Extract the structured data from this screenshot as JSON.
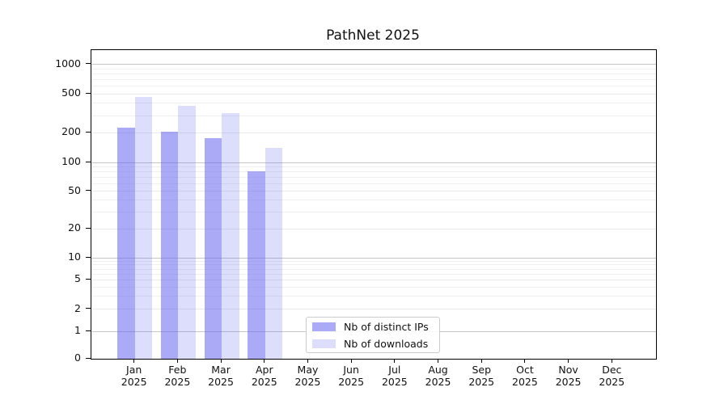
{
  "figure": {
    "title": "PathNet 2025"
  },
  "chart_data": {
    "type": "bar",
    "title": "PathNet 2025",
    "xlabel": "",
    "ylabel": "",
    "x_tick_months": [
      "Jan",
      "Feb",
      "Mar",
      "Apr",
      "May",
      "Jun",
      "Jul",
      "Aug",
      "Sep",
      "Oct",
      "Nov",
      "Dec"
    ],
    "x_tick_year": "2025",
    "categories": [
      "Jan 2025",
      "Feb 2025",
      "Mar 2025",
      "Apr 2025",
      "May 2025",
      "Jun 2025",
      "Jul 2025",
      "Aug 2025",
      "Sep 2025",
      "Oct 2025",
      "Nov 2025",
      "Dec 2025"
    ],
    "series": [
      {
        "name": "Nb of distinct IPs",
        "color": "#6464f0",
        "alpha": 0.55,
        "values": [
          225,
          205,
          175,
          80,
          null,
          null,
          null,
          null,
          null,
          null,
          null,
          null
        ]
      },
      {
        "name": "Nb of downloads",
        "color": "#6464f0",
        "alpha": 0.22,
        "values": [
          460,
          380,
          315,
          140,
          null,
          null,
          null,
          null,
          null,
          null,
          null,
          null
        ]
      }
    ],
    "y_scale": "symlog",
    "y_ticks": [
      0,
      1,
      2,
      5,
      10,
      20,
      50,
      100,
      200,
      500,
      1000
    ],
    "y_minor_ticks": [
      3,
      4,
      6,
      7,
      8,
      9,
      30,
      40,
      60,
      70,
      80,
      90,
      300,
      400,
      600,
      700,
      800,
      900
    ],
    "ylim": [
      0,
      1400
    ],
    "grid": true,
    "legend": {
      "position": "lower center",
      "entries": [
        "Nb of distinct IPs",
        "Nb of downloads"
      ]
    },
    "colors": {
      "major_grid": "#c6c6c6",
      "minor_grid": "#efefef",
      "labeled_grid": "#e9e9e9",
      "axis": "#000000"
    }
  }
}
